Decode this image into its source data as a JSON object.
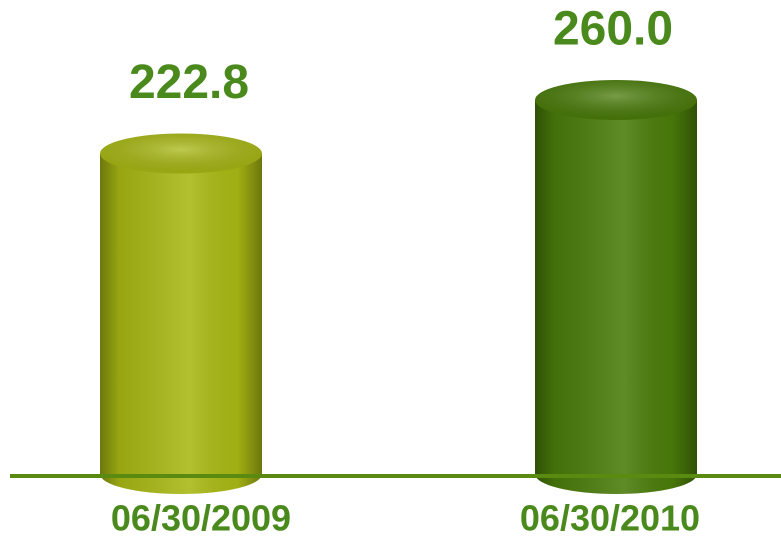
{
  "chart_data": {
    "type": "bar",
    "categories": [
      "06/30/2009",
      "06/30/2010"
    ],
    "values": [
      222.8,
      260.0
    ],
    "value_labels": [
      "222.8",
      "260.0"
    ],
    "colors": [
      "#a8b814",
      "#4a7c0a"
    ],
    "baseline_color": "#5a8a10"
  }
}
